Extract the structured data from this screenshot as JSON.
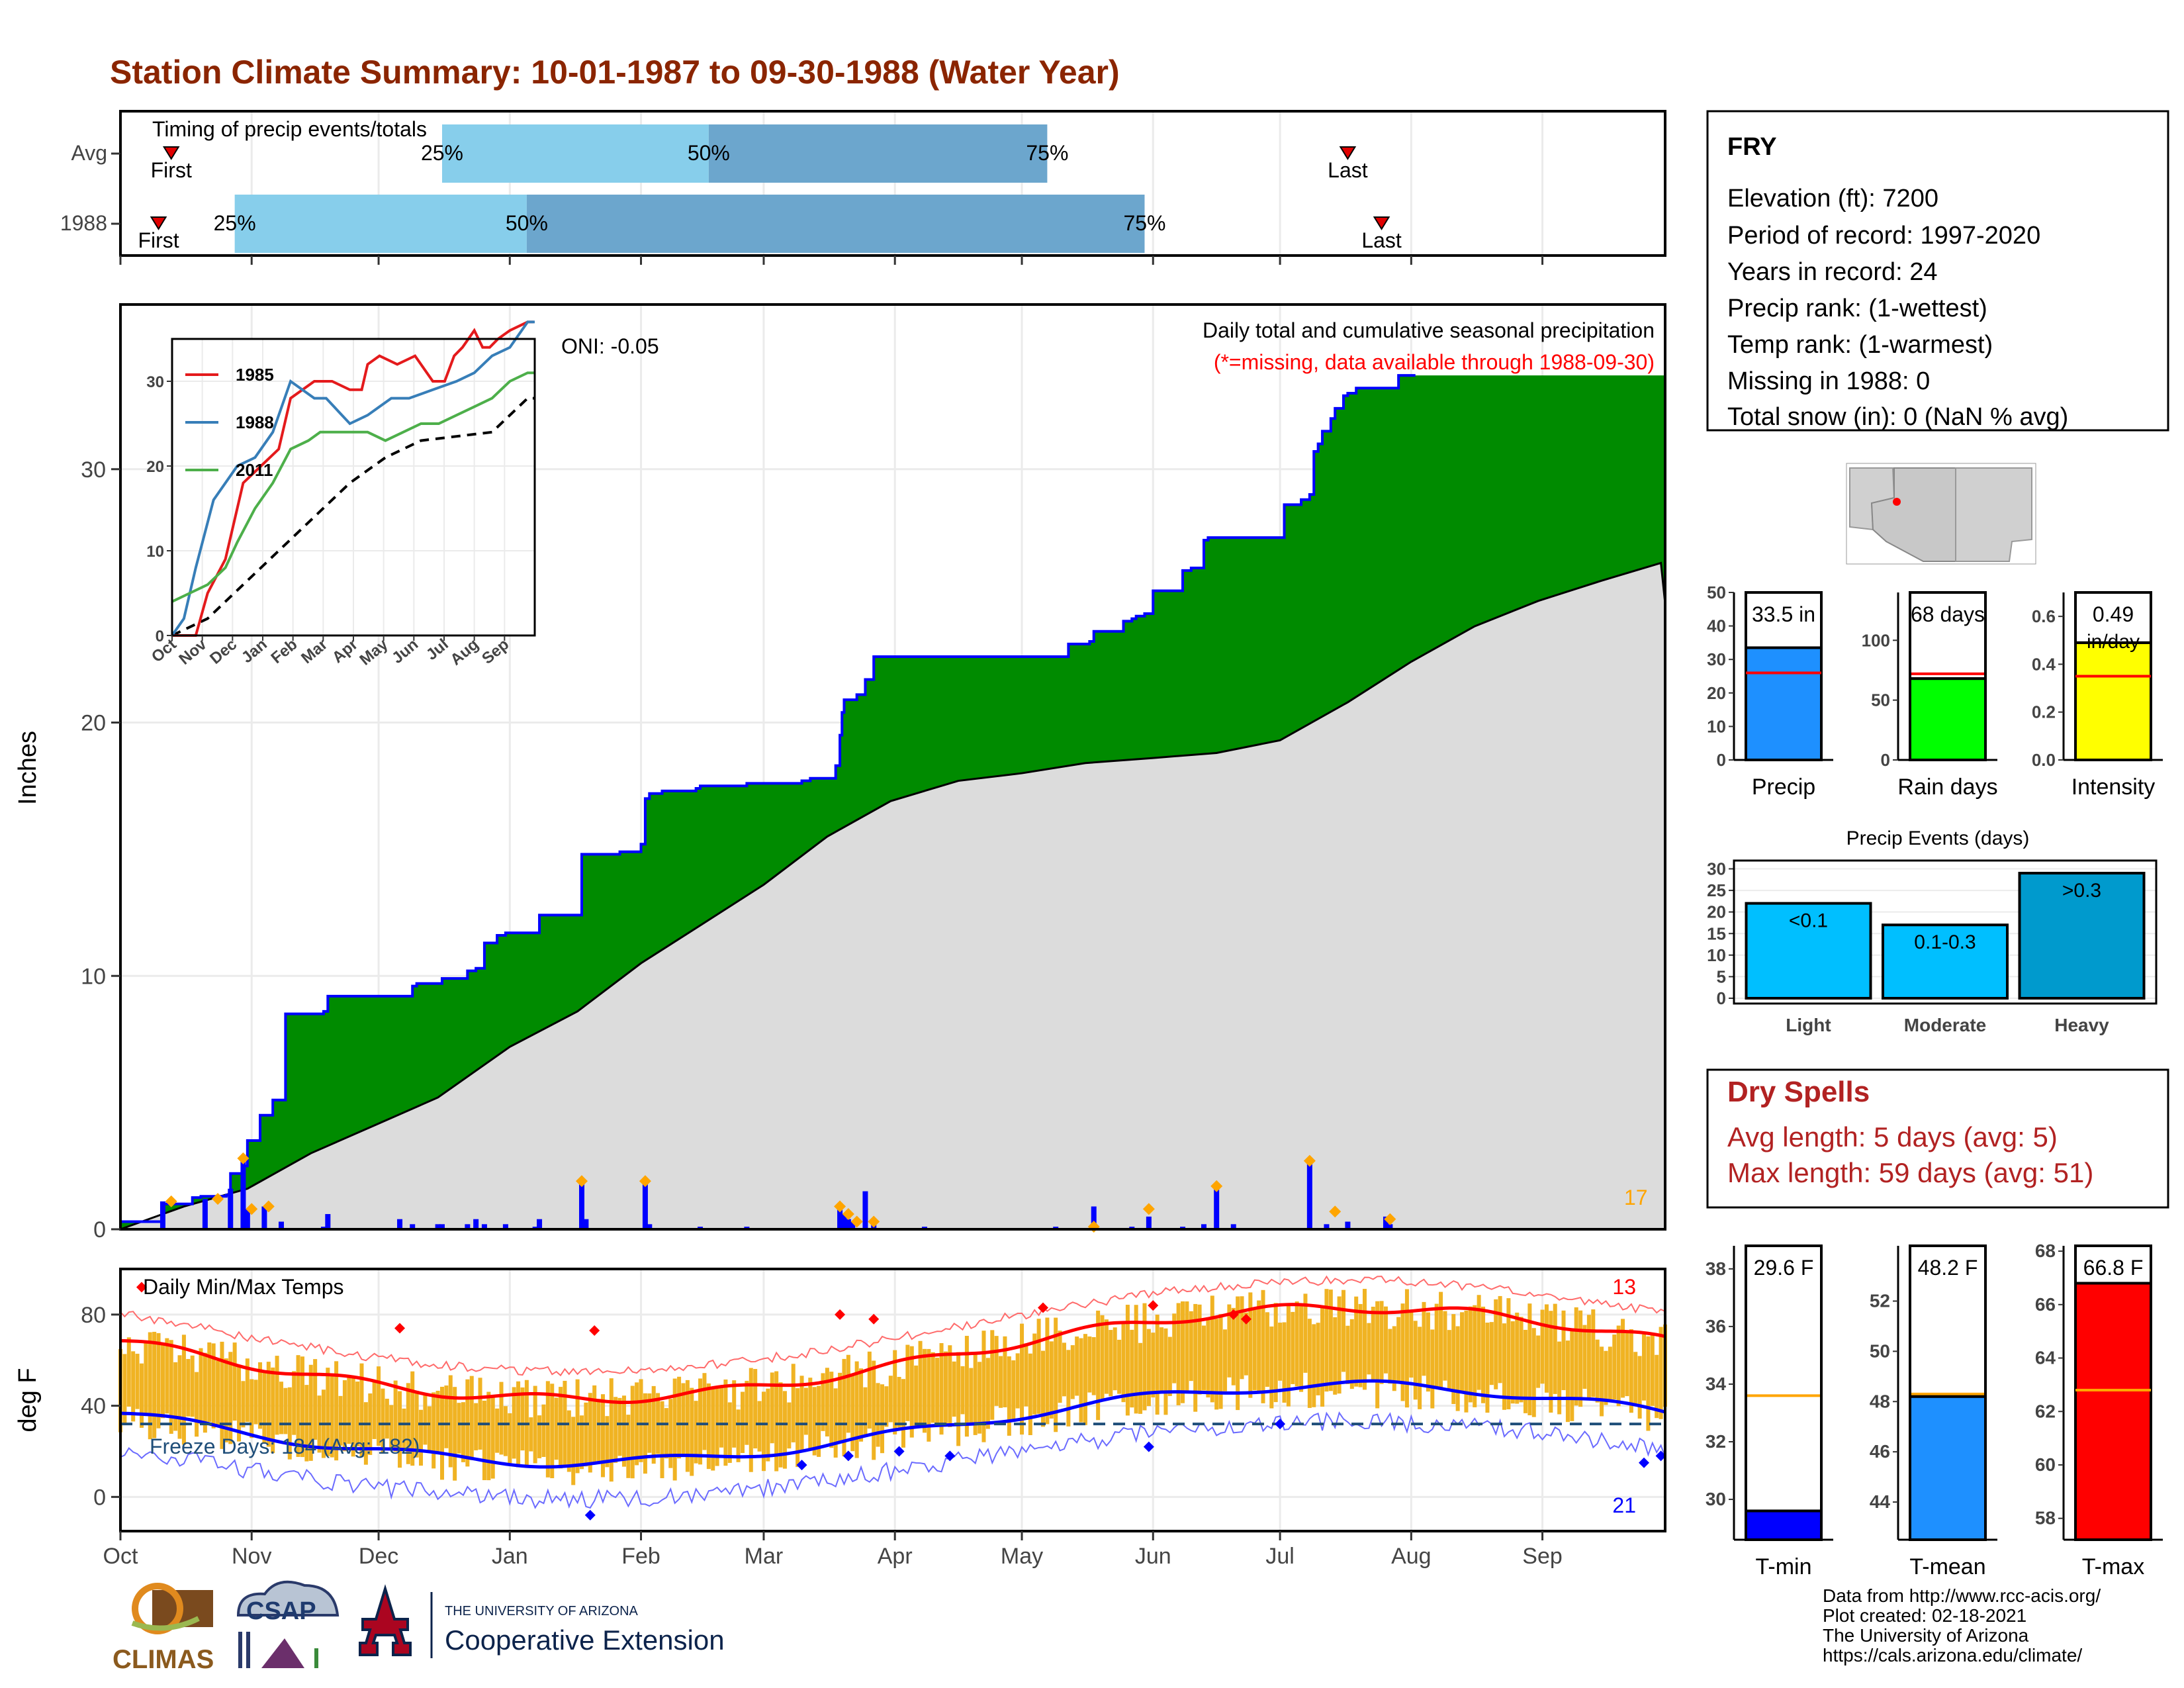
{
  "title": "Station Climate Summary: 10-01-1987 to 09-30-1988 (Water Year)",
  "colors": {
    "title": "#8b2500",
    "green": "#008b00",
    "climo": "#dcdcdc",
    "cum_line": "#0000ff",
    "q_light": "#87ceeb",
    "q_dark": "#6ca6cd",
    "orange": "#ffa500",
    "bar_orange": "#f0b323",
    "dry_red": "#b22222"
  },
  "months": [
    "Oct",
    "Nov",
    "Dec",
    "Jan",
    "Feb",
    "Mar",
    "Apr",
    "May",
    "Jun",
    "Jul",
    "Aug",
    "Sep"
  ],
  "timing": {
    "label": "Timing of precip events/totals",
    "first_label": "First",
    "last_label": "Last",
    "rows": [
      {
        "name": "Avg",
        "first_day": 12,
        "q25_day": 76,
        "q50_day": 139,
        "q75_day": 219,
        "last_day": 290,
        "l25": "25%",
        "l50": "50%",
        "l75": "75%"
      },
      {
        "name": "1988",
        "first_day": 9,
        "q25_day": 27,
        "q50_day": 96,
        "q75_day": 242,
        "last_day": 298,
        "l25": "25%",
        "l50": "50%",
        "l75": "75%"
      }
    ]
  },
  "precip": {
    "title": "Daily total and cumulative seasonal precipitation",
    "subtitle": "(*=missing, data available through 1988-09-30)",
    "oni": "ONI: -0.05",
    "ylabel": "Inches",
    "ylim": [
      0,
      36.5
    ],
    "yticks": [
      0,
      10,
      20,
      30
    ],
    "count_label": "17",
    "cumulative_steps": [
      [
        0,
        0.3
      ],
      [
        10,
        1.0
      ],
      [
        17,
        1.25
      ],
      [
        19,
        1.3
      ],
      [
        25,
        1.35
      ],
      [
        26,
        2.2
      ],
      [
        29,
        2.5
      ],
      [
        30,
        3.5
      ],
      [
        33,
        4.5
      ],
      [
        36,
        5.1
      ],
      [
        39,
        8.5
      ],
      [
        47,
        8.5
      ],
      [
        48,
        8.6
      ],
      [
        49,
        9.2
      ],
      [
        66,
        9.2
      ],
      [
        69,
        9.6
      ],
      [
        70,
        9.7
      ],
      [
        75,
        9.7
      ],
      [
        76,
        9.9
      ],
      [
        82,
        10.2
      ],
      [
        84,
        10.3
      ],
      [
        86,
        11.3
      ],
      [
        89,
        11.6
      ],
      [
        91,
        11.7
      ],
      [
        98,
        11.7
      ],
      [
        99,
        12.4
      ],
      [
        108,
        12.4
      ],
      [
        109,
        14.8
      ],
      [
        118,
        14.9
      ],
      [
        123,
        15.2
      ],
      [
        124,
        17.0
      ],
      [
        125,
        17.2
      ],
      [
        128,
        17.3
      ],
      [
        136,
        17.4
      ],
      [
        137,
        17.5
      ],
      [
        148,
        17.6
      ],
      [
        160,
        17.6
      ],
      [
        161,
        17.7
      ],
      [
        163,
        17.8
      ],
      [
        168,
        17.8
      ],
      [
        169,
        18.3
      ],
      [
        170,
        19.5
      ],
      [
        170.5,
        20.4
      ],
      [
        171,
        20.9
      ],
      [
        174,
        21.1
      ],
      [
        176,
        21.7
      ],
      [
        178,
        22.6
      ],
      [
        190,
        22.6
      ],
      [
        220,
        22.6
      ],
      [
        221,
        22.6
      ],
      [
        224,
        23.1
      ],
      [
        229,
        23.2
      ],
      [
        230,
        23.6
      ],
      [
        237,
        24.0
      ],
      [
        239,
        24.1
      ],
      [
        240,
        24.2
      ],
      [
        242,
        24.3
      ],
      [
        244,
        25.2
      ],
      [
        247,
        25.2
      ],
      [
        251,
        26.0
      ],
      [
        253,
        26.1
      ],
      [
        255,
        26.1
      ],
      [
        256,
        27.2
      ],
      [
        257,
        27.3
      ],
      [
        270,
        27.3
      ],
      [
        274,
        27.3
      ],
      [
        275,
        28.6
      ],
      [
        279,
        28.8
      ],
      [
        281,
        29.0
      ],
      [
        282,
        30.7
      ],
      [
        283,
        31.0
      ],
      [
        284,
        31.5
      ],
      [
        286,
        32.0
      ],
      [
        287,
        32.4
      ],
      [
        289,
        32.9
      ],
      [
        290,
        33.0
      ],
      [
        292,
        33.2
      ],
      [
        296,
        33.2
      ],
      [
        301,
        33.2
      ],
      [
        302,
        33.7
      ],
      [
        306,
        33.7
      ]
    ],
    "climo_points": [
      [
        0,
        0
      ],
      [
        15,
        0.9
      ],
      [
        30,
        1.6
      ],
      [
        45,
        3.0
      ],
      [
        60,
        4.1
      ],
      [
        75,
        5.2
      ],
      [
        92,
        7.2
      ],
      [
        108,
        8.6
      ],
      [
        123,
        10.5
      ],
      [
        138,
        12.1
      ],
      [
        152,
        13.6
      ],
      [
        167,
        15.5
      ],
      [
        182,
        16.9
      ],
      [
        198,
        17.7
      ],
      [
        213,
        18.0
      ],
      [
        228,
        18.4
      ],
      [
        244,
        18.6
      ],
      [
        259,
        18.8
      ],
      [
        274,
        19.3
      ],
      [
        290,
        20.8
      ],
      [
        305,
        22.4
      ],
      [
        320,
        23.8
      ],
      [
        335,
        24.8
      ],
      [
        350,
        25.6
      ],
      [
        364,
        26.3
      ],
      [
        365,
        24.7
      ]
    ],
    "daily_bars": [
      [
        10,
        1.1
      ],
      [
        20,
        1.2
      ],
      [
        26,
        1.6
      ],
      [
        29,
        2.8
      ],
      [
        30,
        0.8
      ],
      [
        34,
        0.9
      ],
      [
        38,
        0.3
      ],
      [
        48,
        0.1
      ],
      [
        49,
        0.6
      ],
      [
        66,
        0.4
      ],
      [
        69,
        0.2
      ],
      [
        75,
        0.2
      ],
      [
        76,
        0.2
      ],
      [
        82,
        0.2
      ],
      [
        84,
        0.4
      ],
      [
        86,
        0.2
      ],
      [
        91,
        0.2
      ],
      [
        98,
        0.1
      ],
      [
        99,
        0.4
      ],
      [
        109,
        1.9
      ],
      [
        110,
        0.4
      ],
      [
        124,
        1.9
      ],
      [
        125,
        0.2
      ],
      [
        137,
        0.1
      ],
      [
        148,
        0.1
      ],
      [
        170,
        0.9
      ],
      [
        171,
        0.6
      ],
      [
        172,
        0.4
      ],
      [
        173,
        0.3
      ],
      [
        176,
        1.5
      ],
      [
        178,
        0.3
      ],
      [
        190,
        0.1
      ],
      [
        221,
        0.1
      ],
      [
        230,
        0.9
      ],
      [
        239,
        0.1
      ],
      [
        243,
        0.5
      ],
      [
        251,
        0.1
      ],
      [
        256,
        0.2
      ],
      [
        259,
        1.7
      ],
      [
        263,
        0.2
      ],
      [
        281,
        2.7
      ],
      [
        285,
        0.2
      ],
      [
        290,
        0.3
      ],
      [
        299,
        0.5
      ],
      [
        300,
        0.2
      ]
    ],
    "diamonds": [
      [
        12,
        1.1
      ],
      [
        23,
        1.2
      ],
      [
        29,
        2.8
      ],
      [
        31,
        0.8
      ],
      [
        35,
        0.9
      ],
      [
        109,
        1.9
      ],
      [
        124,
        1.9
      ],
      [
        170,
        0.9
      ],
      [
        172,
        0.6
      ],
      [
        174,
        0.3
      ],
      [
        178,
        0.3
      ],
      [
        230,
        0.1
      ],
      [
        243,
        0.8
      ],
      [
        259,
        1.7
      ],
      [
        281,
        2.7
      ],
      [
        287,
        0.7
      ],
      [
        300,
        0.4
      ]
    ]
  },
  "inset": {
    "series": [
      {
        "name": "1985",
        "color": "#e41a1c",
        "points": [
          [
            0,
            0
          ],
          [
            20,
            0
          ],
          [
            30,
            5
          ],
          [
            45,
            9
          ],
          [
            60,
            18
          ],
          [
            75,
            20
          ],
          [
            90,
            22
          ],
          [
            100,
            28
          ],
          [
            120,
            30
          ],
          [
            135,
            30
          ],
          [
            150,
            29
          ],
          [
            160,
            29
          ],
          [
            165,
            32
          ],
          [
            175,
            33
          ],
          [
            190,
            32
          ],
          [
            205,
            33
          ],
          [
            220,
            30
          ],
          [
            230,
            30
          ],
          [
            238,
            33
          ],
          [
            245,
            34
          ],
          [
            255,
            36
          ],
          [
            262,
            34
          ],
          [
            268,
            34
          ],
          [
            275,
            35
          ],
          [
            285,
            36
          ],
          [
            300,
            37
          ],
          [
            305,
            37
          ]
        ]
      },
      {
        "name": "1988",
        "color": "#377eb8",
        "points": [
          [
            0,
            0
          ],
          [
            10,
            2
          ],
          [
            20,
            8
          ],
          [
            35,
            16
          ],
          [
            55,
            20
          ],
          [
            70,
            21
          ],
          [
            85,
            24
          ],
          [
            100,
            30
          ],
          [
            120,
            28
          ],
          [
            130,
            28
          ],
          [
            150,
            25
          ],
          [
            165,
            26
          ],
          [
            175,
            27
          ],
          [
            185,
            28
          ],
          [
            200,
            28
          ],
          [
            220,
            29
          ],
          [
            240,
            30
          ],
          [
            255,
            31
          ],
          [
            270,
            33
          ],
          [
            285,
            34
          ],
          [
            300,
            37
          ],
          [
            306,
            37
          ]
        ]
      },
      {
        "name": "2011",
        "color": "#4daf4a",
        "points": [
          [
            0,
            4
          ],
          [
            15,
            5
          ],
          [
            30,
            6
          ],
          [
            45,
            8
          ],
          [
            55,
            11
          ],
          [
            70,
            15
          ],
          [
            85,
            18
          ],
          [
            100,
            22
          ],
          [
            115,
            23
          ],
          [
            125,
            24
          ],
          [
            135,
            24
          ],
          [
            150,
            24
          ],
          [
            165,
            24
          ],
          [
            180,
            23
          ],
          [
            195,
            24
          ],
          [
            210,
            25
          ],
          [
            225,
            25
          ],
          [
            240,
            26
          ],
          [
            255,
            27
          ],
          [
            270,
            28
          ],
          [
            285,
            30
          ],
          [
            300,
            31
          ],
          [
            306,
            31
          ]
        ]
      }
    ],
    "climo_points": [
      [
        0,
        0
      ],
      [
        30,
        2
      ],
      [
        60,
        6
      ],
      [
        90,
        10
      ],
      [
        120,
        14
      ],
      [
        150,
        18
      ],
      [
        180,
        21
      ],
      [
        210,
        23
      ],
      [
        240,
        23.5
      ],
      [
        270,
        24
      ],
      [
        300,
        28
      ],
      [
        306,
        28
      ]
    ],
    "ylim": [
      0,
      35
    ],
    "yticks": [
      0,
      10,
      20,
      30
    ],
    "months": [
      "Oct",
      "Nov",
      "Dec",
      "Jan",
      "Feb",
      "Mar",
      "Apr",
      "May",
      "Jun",
      "Jul",
      "Aug",
      "Sep"
    ]
  },
  "temp": {
    "title": "Daily Min/Max Temps",
    "ylabel": "deg F",
    "ylim": [
      -15,
      100
    ],
    "yticks": [
      0,
      40,
      80
    ],
    "freeze_label": "Freeze Days: 184 (Avg: 182)",
    "freeze_line": 32,
    "count_hot": "13",
    "count_cold": "21"
  },
  "station": {
    "name": "FRY",
    "lines": [
      "Elevation (ft): 7200",
      "Period of record: 1997-2020",
      "Years in record: 24",
      "Precip rank:  (1-wettest)",
      "Temp rank:  (1-warmest)",
      "Missing in 1988: 0",
      "Total snow (in): 0 (NaN % avg)"
    ]
  },
  "summary_bars": [
    {
      "label": "Precip",
      "value_label": "33.5 in",
      "value": 33.5,
      "avg": 26,
      "ymax": 50,
      "yticks": [
        "0",
        "10",
        "20",
        "30",
        "40",
        "50"
      ],
      "tickvals": [
        0,
        10,
        20,
        30,
        40,
        50
      ],
      "color": "#1e90ff"
    },
    {
      "label": "Rain days",
      "value_label": "68 days",
      "value": 68,
      "avg": 72,
      "ymax": 140,
      "yticks": [
        "0",
        "50",
        "100"
      ],
      "tickvals": [
        0,
        50,
        100
      ],
      "color": "#00ff00"
    },
    {
      "label": "Intensity",
      "value_label": "0.49",
      "value_label2": "in/day",
      "value": 0.49,
      "avg": 0.35,
      "ymax": 0.7,
      "yticks": [
        "0.0",
        "0.2",
        "0.4",
        "0.6"
      ],
      "tickvals": [
        0,
        0.2,
        0.4,
        0.6
      ],
      "color": "#ffff00"
    }
  ],
  "events": {
    "title": "Precip Events (days)",
    "yticks": [
      0,
      5,
      10,
      15,
      20,
      25,
      30
    ],
    "ymax": 31,
    "bars": [
      {
        "category": "Light",
        "label": "<0.1",
        "value": 22
      },
      {
        "category": "Moderate",
        "label": "0.1-0.3",
        "value": 17
      },
      {
        "category": "Heavy",
        "label": ">0.3",
        "value": 29
      }
    ]
  },
  "dry": {
    "title": "Dry Spells",
    "avg": "Avg length: 5 days (avg: 5)",
    "max": "Max length: 59 days (avg: 51)"
  },
  "temp_bars": [
    {
      "label": "T-min",
      "value_label": "29.6 F",
      "value": 29.6,
      "avg": 33.6,
      "ymin": 28.6,
      "ymax": 38.8,
      "tickvals": [
        30,
        32,
        34,
        36,
        38
      ],
      "color": "#0000ff"
    },
    {
      "label": "T-mean",
      "value_label": "48.2 F",
      "value": 48.2,
      "avg": 48.3,
      "ymin": 42.5,
      "ymax": 54.2,
      "tickvals": [
        44,
        46,
        48,
        50,
        52
      ],
      "color": "#1e90ff"
    },
    {
      "label": "T-max",
      "value_label": "66.8 F",
      "value": 66.8,
      "avg": 62.8,
      "ymin": 57.2,
      "ymax": 68.2,
      "tickvals": [
        58,
        60,
        62,
        64,
        66,
        68
      ],
      "color": "#ff0000"
    }
  ],
  "footer": [
    "Data from http://www.rcc-acis.org/",
    "Plot created: 02-18-2021",
    "The University of Arizona",
    "https://cals.arizona.edu/climate/"
  ],
  "logos": {
    "climas": "CLIMAS",
    "csap": "CSAP",
    "ua_small": "THE UNIVERSITY OF ARIZONA",
    "ua_big": "Cooperative Extension"
  }
}
